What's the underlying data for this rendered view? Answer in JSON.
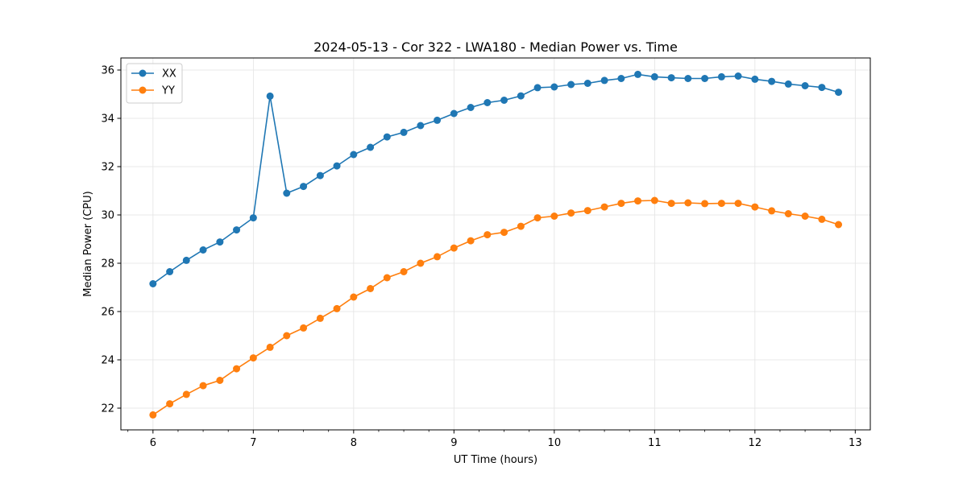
{
  "chart_data": {
    "type": "line",
    "title": "2024-05-13 - Cor 322 - LWA180 - Median Power vs. Time",
    "xlabel": "UT Time (hours)",
    "ylabel": "Median Power (CPU)",
    "xlim": [
      5.68,
      13.15
    ],
    "ylim": [
      21.1,
      36.5
    ],
    "x_ticks": [
      6,
      7,
      8,
      9,
      10,
      11,
      12,
      13
    ],
    "x_minor_step": 0.25,
    "y_ticks": [
      22,
      24,
      26,
      28,
      30,
      32,
      34,
      36
    ],
    "grid": true,
    "legend_position": "top-left",
    "x": [
      6.0,
      6.167,
      6.333,
      6.5,
      6.667,
      6.833,
      7.0,
      7.167,
      7.333,
      7.5,
      7.667,
      7.833,
      8.0,
      8.167,
      8.333,
      8.5,
      8.667,
      8.833,
      9.0,
      9.167,
      9.333,
      9.5,
      9.667,
      9.833,
      10.0,
      10.167,
      10.333,
      10.5,
      10.667,
      10.833,
      11.0,
      11.167,
      11.333,
      11.5,
      11.667,
      11.833,
      12.0,
      12.167,
      12.333,
      12.5,
      12.667,
      12.833
    ],
    "series": [
      {
        "name": "XX",
        "color": "#1f77b4",
        "values": [
          27.15,
          27.65,
          28.12,
          28.55,
          28.88,
          29.38,
          29.88,
          34.92,
          30.9,
          31.18,
          31.63,
          32.03,
          32.5,
          32.8,
          33.23,
          33.42,
          33.7,
          33.92,
          34.2,
          34.45,
          34.65,
          34.75,
          34.93,
          35.27,
          35.3,
          35.4,
          35.45,
          35.57,
          35.65,
          35.82,
          35.72,
          35.68,
          35.65,
          35.65,
          35.72,
          35.75,
          35.62,
          35.53,
          35.42,
          35.35,
          35.28,
          35.08
        ]
      },
      {
        "name": "YY",
        "color": "#ff7f0e",
        "values": [
          21.72,
          22.18,
          22.57,
          22.93,
          23.15,
          23.63,
          24.08,
          24.52,
          25.0,
          25.32,
          25.72,
          26.12,
          26.6,
          26.95,
          27.4,
          27.65,
          28.0,
          28.27,
          28.63,
          28.93,
          29.18,
          29.28,
          29.53,
          29.88,
          29.95,
          30.08,
          30.18,
          30.33,
          30.48,
          30.58,
          30.6,
          30.48,
          30.5,
          30.47,
          30.48,
          30.48,
          30.33,
          30.17,
          30.05,
          29.95,
          29.82,
          29.6
        ]
      }
    ]
  }
}
